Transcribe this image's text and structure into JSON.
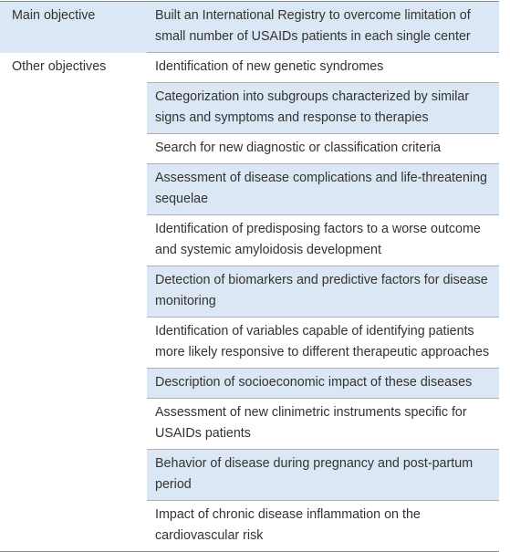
{
  "table": {
    "groups": [
      {
        "label": "Main objective",
        "items": [
          "Built an International Registry to overcome limitation of small number of USAIDs patients in each single center"
        ]
      },
      {
        "label": "Other objectives",
        "items": [
          "Identification of new genetic syndromes",
          "Categorization into subgroups characterized by similar signs and symptoms and response to therapies",
          "Search for new diagnostic or classification criteria",
          "Assessment of disease complications and life-threatening sequelae",
          "Identification of predisposing factors to a worse outcome and systemic amyloidosis development",
          "Detection of biomarkers and predictive factors for disease monitoring",
          "Identification of variables capable of identifying patients more likely responsive to different therapeutic approaches",
          "Description of socioeconomic impact of these diseases",
          "Assessment of new clinimetric instruments specific for USAIDs patients",
          "Behavior of disease during pregnancy and post-partum period",
          "Impact of chronic disease inflammation on the cardiovascular risk"
        ]
      }
    ]
  }
}
